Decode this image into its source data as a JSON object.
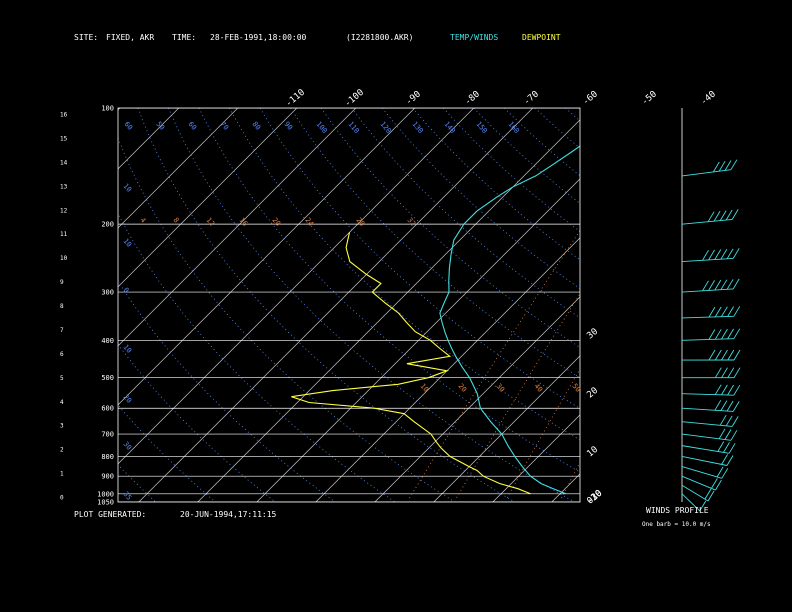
{
  "header": {
    "site_label": "SITE:",
    "site_value": "FIXED, AKR",
    "time_label": "TIME:",
    "time_value": "28-FEB-1991,18:00:00",
    "file_id": "(I2281800.AKR)",
    "temp_winds_label": "TEMP/WINDS",
    "dewpoint_label": "DEWPOINT"
  },
  "footer": {
    "generated_label": "PLOT GENERATED:",
    "generated_value": "20-JUN-1994,17:11:15",
    "winds_profile_label": "WINDS PROFILE",
    "barb_note": "One barb = 10.0 m/s"
  },
  "colors": {
    "temperature": "#40e0e0",
    "dewpoint": "#ffff40",
    "isotherm": "#c8c8c8",
    "dry_adiabat": "#5a8cff",
    "mixing_ratio": "#e08040",
    "isobar": "#ffffff"
  },
  "chart_data": {
    "type": "line",
    "diagram": "skew-T log-p",
    "pressure_levels_mb": [
      100,
      200,
      300,
      400,
      500,
      600,
      700,
      800,
      900,
      1000,
      1050
    ],
    "pressure_tick_labels": [
      "100",
      "200",
      "300",
      "400",
      "500",
      "600",
      "700",
      "800",
      "900",
      "1000",
      "1050"
    ],
    "height_km_ticks": [
      16,
      15,
      14,
      13,
      12,
      11,
      10,
      9,
      8,
      7,
      6,
      5,
      4,
      3,
      2,
      1,
      0
    ],
    "isotherm_top_labels": [
      "-110",
      "-100",
      "-90",
      "-80",
      "-70",
      "-60",
      "-50",
      "-40"
    ],
    "isotherm_right_labels": [
      "-30",
      "-20",
      "-10",
      "0",
      "10",
      "20",
      "30"
    ],
    "isotherm_values_c": [
      -110,
      -100,
      -90,
      -80,
      -70,
      -60,
      -50,
      -40,
      -30,
      -20,
      -10,
      0,
      10,
      20,
      30
    ],
    "dry_adiabat_labels_top": [
      "60",
      "50",
      "60",
      "70",
      "80",
      "90",
      "100",
      "110",
      "120",
      "130",
      "140",
      "150",
      "160"
    ],
    "dry_adiabat_labels_left": [
      "10",
      "10",
      "0",
      "10",
      "20",
      "30",
      "35"
    ],
    "mixing_ratio_labels_row1": [
      "4",
      "8",
      "12",
      "16",
      "20",
      "24",
      "28",
      "32"
    ],
    "mixing_ratio_labels_row2": [
      "10",
      "20",
      "30",
      "40",
      "50"
    ],
    "temperature_profile": [
      {
        "p": 1000,
        "t": 1
      },
      {
        "p": 970,
        "t": -2
      },
      {
        "p": 940,
        "t": -5
      },
      {
        "p": 900,
        "t": -8
      },
      {
        "p": 850,
        "t": -11
      },
      {
        "p": 800,
        "t": -14
      },
      {
        "p": 750,
        "t": -17
      },
      {
        "p": 700,
        "t": -20
      },
      {
        "p": 650,
        "t": -24
      },
      {
        "p": 600,
        "t": -28
      },
      {
        "p": 550,
        "t": -31
      },
      {
        "p": 500,
        "t": -35
      },
      {
        "p": 470,
        "t": -38
      },
      {
        "p": 440,
        "t": -41
      },
      {
        "p": 420,
        "t": -43
      },
      {
        "p": 400,
        "t": -45
      },
      {
        "p": 380,
        "t": -47
      },
      {
        "p": 360,
        "t": -49
      },
      {
        "p": 340,
        "t": -51
      },
      {
        "p": 320,
        "t": -52
      },
      {
        "p": 300,
        "t": -53
      },
      {
        "p": 280,
        "t": -55
      },
      {
        "p": 260,
        "t": -57
      },
      {
        "p": 240,
        "t": -59
      },
      {
        "p": 220,
        "t": -61
      },
      {
        "p": 200,
        "t": -62
      },
      {
        "p": 185,
        "t": -62
      },
      {
        "p": 170,
        "t": -61
      },
      {
        "p": 160,
        "t": -60
      },
      {
        "p": 150,
        "t": -58
      },
      {
        "p": 140,
        "t": -57
      },
      {
        "p": 130,
        "t": -56
      },
      {
        "p": 120,
        "t": -55
      },
      {
        "p": 112,
        "t": -54
      },
      {
        "p": 100,
        "t": -52
      }
    ],
    "dewpoint_profile": [
      {
        "p": 1000,
        "t": -5
      },
      {
        "p": 970,
        "t": -8
      },
      {
        "p": 940,
        "t": -12
      },
      {
        "p": 900,
        "t": -16
      },
      {
        "p": 870,
        "t": -18
      },
      {
        "p": 850,
        "t": -20
      },
      {
        "p": 800,
        "t": -25
      },
      {
        "p": 760,
        "t": -28
      },
      {
        "p": 730,
        "t": -30
      },
      {
        "p": 700,
        "t": -32
      },
      {
        "p": 650,
        "t": -37
      },
      {
        "p": 620,
        "t": -40
      },
      {
        "p": 600,
        "t": -46
      },
      {
        "p": 580,
        "t": -58
      },
      {
        "p": 560,
        "t": -62
      },
      {
        "p": 540,
        "t": -56
      },
      {
        "p": 520,
        "t": -46
      },
      {
        "p": 500,
        "t": -42
      },
      {
        "p": 480,
        "t": -40
      },
      {
        "p": 460,
        "t": -48
      },
      {
        "p": 440,
        "t": -42
      },
      {
        "p": 420,
        "t": -45
      },
      {
        "p": 400,
        "t": -48
      },
      {
        "p": 380,
        "t": -52
      },
      {
        "p": 360,
        "t": -55
      },
      {
        "p": 340,
        "t": -58
      },
      {
        "p": 320,
        "t": -62
      },
      {
        "p": 300,
        "t": -66
      },
      {
        "p": 285,
        "t": -66
      },
      {
        "p": 270,
        "t": -70
      },
      {
        "p": 250,
        "t": -75
      },
      {
        "p": 230,
        "t": -78
      },
      {
        "p": 210,
        "t": -80
      }
    ],
    "winds_profile": [
      {
        "p": 1000,
        "dir": 200,
        "speed": 12
      },
      {
        "p": 950,
        "dir": 210,
        "speed": 15
      },
      {
        "p": 900,
        "dir": 220,
        "speed": 18
      },
      {
        "p": 850,
        "dir": 230,
        "speed": 20
      },
      {
        "p": 800,
        "dir": 240,
        "speed": 22
      },
      {
        "p": 750,
        "dir": 245,
        "speed": 25
      },
      {
        "p": 700,
        "dir": 250,
        "speed": 28
      },
      {
        "p": 650,
        "dir": 255,
        "speed": 32
      },
      {
        "p": 600,
        "dir": 260,
        "speed": 36
      },
      {
        "p": 550,
        "dir": 265,
        "speed": 40
      },
      {
        "p": 500,
        "dir": 270,
        "speed": 44
      },
      {
        "p": 450,
        "dir": 270,
        "speed": 48
      },
      {
        "p": 400,
        "dir": 275,
        "speed": 50
      },
      {
        "p": 350,
        "dir": 275,
        "speed": 52
      },
      {
        "p": 300,
        "dir": 280,
        "speed": 55
      },
      {
        "p": 250,
        "dir": 280,
        "speed": 55
      },
      {
        "p": 200,
        "dir": 285,
        "speed": 50
      },
      {
        "p": 150,
        "dir": 290,
        "speed": 40
      }
    ]
  }
}
